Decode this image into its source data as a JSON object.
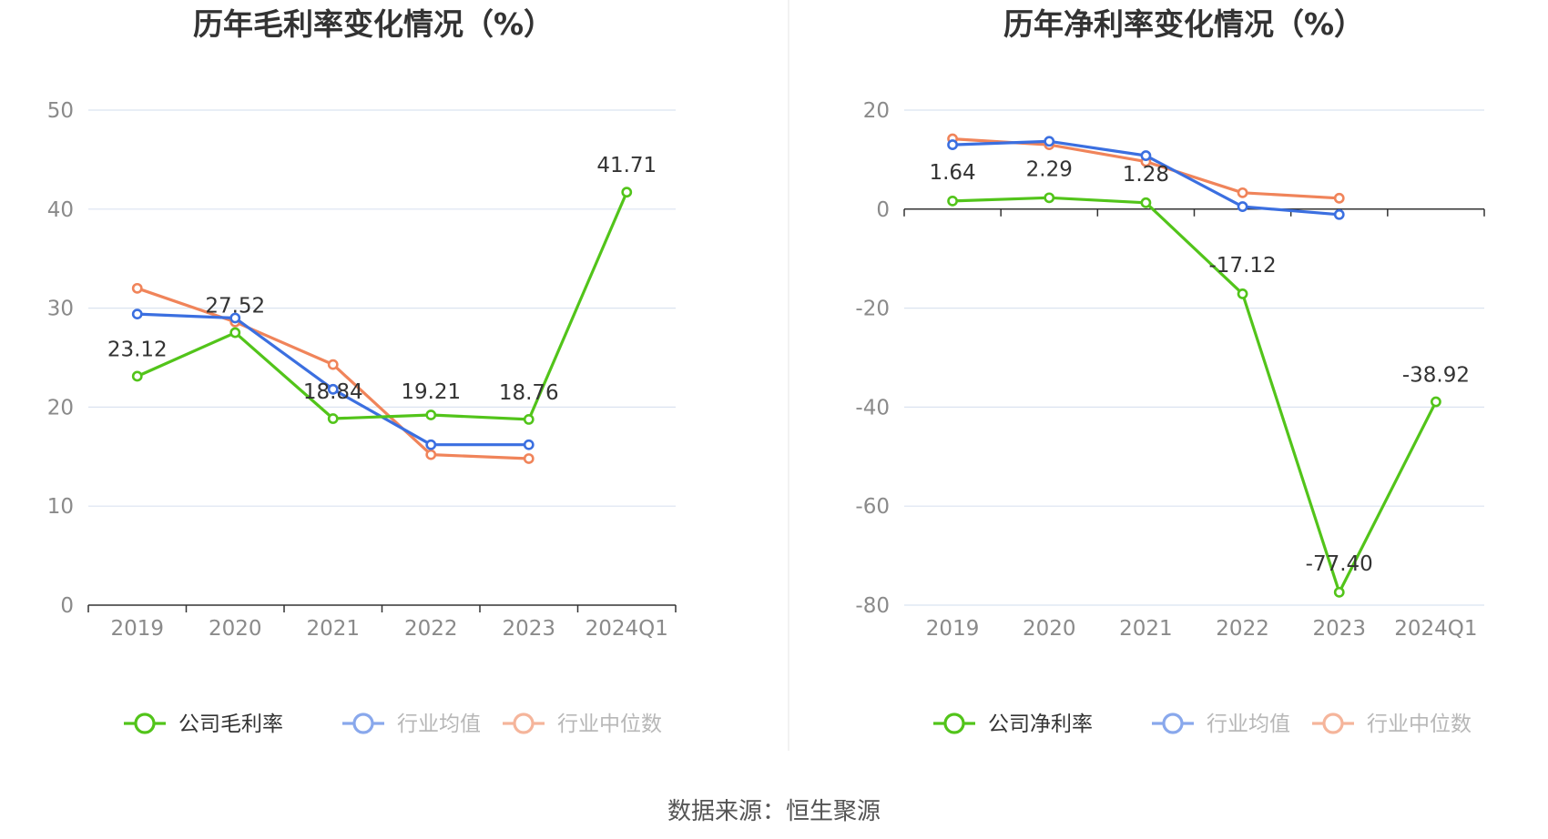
{
  "colors": {
    "company": "#52c41a",
    "average": "#3b6fe0",
    "median": "#f0845a",
    "grid": "#dbe3f0",
    "axis": "#333333",
    "tick_text": "#8a8a8a"
  },
  "source_text": "数据来源：恒生聚源",
  "chart_data": [
    {
      "type": "line",
      "title": "历年毛利率变化情况（%）",
      "categories": [
        "2019",
        "2020",
        "2021",
        "2022",
        "2023",
        "2024Q1"
      ],
      "ylim": [
        0,
        50
      ],
      "yticks": [
        "0",
        "10",
        "20",
        "30",
        "40",
        "50"
      ],
      "yticks_values": [
        0,
        10,
        20,
        30,
        40,
        50
      ],
      "series": [
        {
          "name": "公司毛利率",
          "key": "company",
          "values": [
            23.12,
            27.52,
            18.84,
            19.21,
            18.76,
            41.71
          ],
          "labels": [
            "23.12",
            "27.52",
            "18.84",
            "19.21",
            "18.76",
            "41.71"
          ]
        },
        {
          "name": "行业均值",
          "key": "average",
          "values": [
            29.4,
            29.0,
            21.8,
            16.2,
            16.2,
            null
          ]
        },
        {
          "name": "行业中位数",
          "key": "median",
          "values": [
            32.0,
            28.6,
            24.3,
            15.2,
            14.8,
            null
          ]
        }
      ],
      "legend": [
        "公司毛利率",
        "行业均值",
        "行业中位数"
      ]
    },
    {
      "type": "line",
      "title": "历年净利率变化情况（%）",
      "categories": [
        "2019",
        "2020",
        "2021",
        "2022",
        "2023",
        "2024Q1"
      ],
      "ylim": [
        -80,
        20
      ],
      "yticks": [
        "-80",
        "-60",
        "-40",
        "-20",
        "0",
        "20"
      ],
      "yticks_values": [
        -80,
        -60,
        -40,
        -20,
        0,
        20
      ],
      "series": [
        {
          "name": "公司净利率",
          "key": "company",
          "values": [
            1.64,
            2.29,
            1.28,
            -17.12,
            -77.4,
            -38.92
          ],
          "labels": [
            "1.64",
            "2.29",
            "1.28",
            "-17.12",
            "-77.40",
            "-38.92"
          ]
        },
        {
          "name": "行业均值",
          "key": "average",
          "values": [
            13.0,
            13.7,
            10.8,
            0.5,
            -1.1,
            null
          ]
        },
        {
          "name": "行业中位数",
          "key": "median",
          "values": [
            14.2,
            13.0,
            9.6,
            3.3,
            2.2,
            null
          ]
        }
      ],
      "legend": [
        "公司净利率",
        "行业均值",
        "行业中位数"
      ]
    }
  ]
}
